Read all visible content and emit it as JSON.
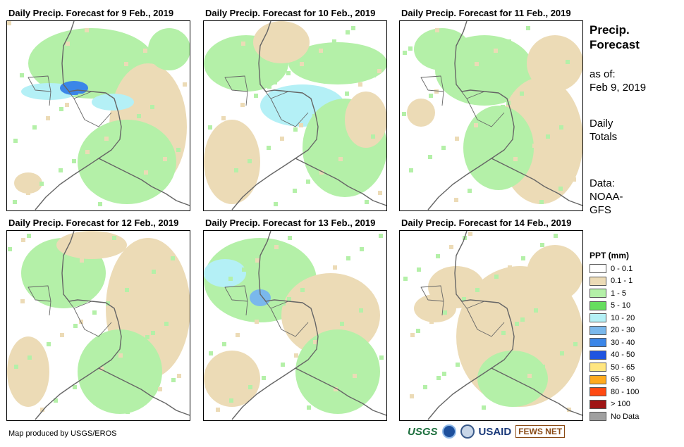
{
  "panels": [
    {
      "title": "Daily Precip. Forecast for 9 Feb., 2019"
    },
    {
      "title": "Daily Precip. Forecast for 10 Feb., 2019"
    },
    {
      "title": "Daily Precip. Forecast for 11 Feb., 2019"
    },
    {
      "title": "Daily Precip. Forecast for 12 Feb., 2019"
    },
    {
      "title": "Daily Precip. Forecast for 13 Feb., 2019"
    },
    {
      "title": "Daily Precip. Forecast for 14 Feb., 2019"
    }
  ],
  "side": {
    "title_line1": "Precip.",
    "title_line2": "Forecast",
    "asof_line1": "as of:",
    "asof_line2": "Feb 9, 2019",
    "totals_line1": "Daily",
    "totals_line2": "Totals",
    "source_line1": "Data:",
    "source_line2": "NOAA-",
    "source_line3": "GFS"
  },
  "legend": {
    "title": "PPT (mm)",
    "items": [
      {
        "label": "0 - 0.1",
        "color": "#ffffff"
      },
      {
        "label": "0.1 - 1",
        "color": "#ecdbb6"
      },
      {
        "label": "1 - 5",
        "color": "#b4f0a8"
      },
      {
        "label": "5 - 10",
        "color": "#66dd5e"
      },
      {
        "label": "10 - 20",
        "color": "#b4f0f6"
      },
      {
        "label": "20 - 30",
        "color": "#7ab8ec"
      },
      {
        "label": "30 - 40",
        "color": "#3b86e8"
      },
      {
        "label": "40 - 50",
        "color": "#1f54e0"
      },
      {
        "label": "50 - 65",
        "color": "#ffe680"
      },
      {
        "label": "65 - 80",
        "color": "#ffaa1e"
      },
      {
        "label": "80 - 100",
        "color": "#ff4a12"
      },
      {
        "label": "> 100",
        "color": "#a01515"
      },
      {
        "label": "No Data",
        "color": "#a0a0a0"
      }
    ]
  },
  "credit": "Map produced by USGS/EROS",
  "logos": {
    "usgs": "USGS",
    "usaid": "USAID",
    "fews": "FEWS NET"
  }
}
